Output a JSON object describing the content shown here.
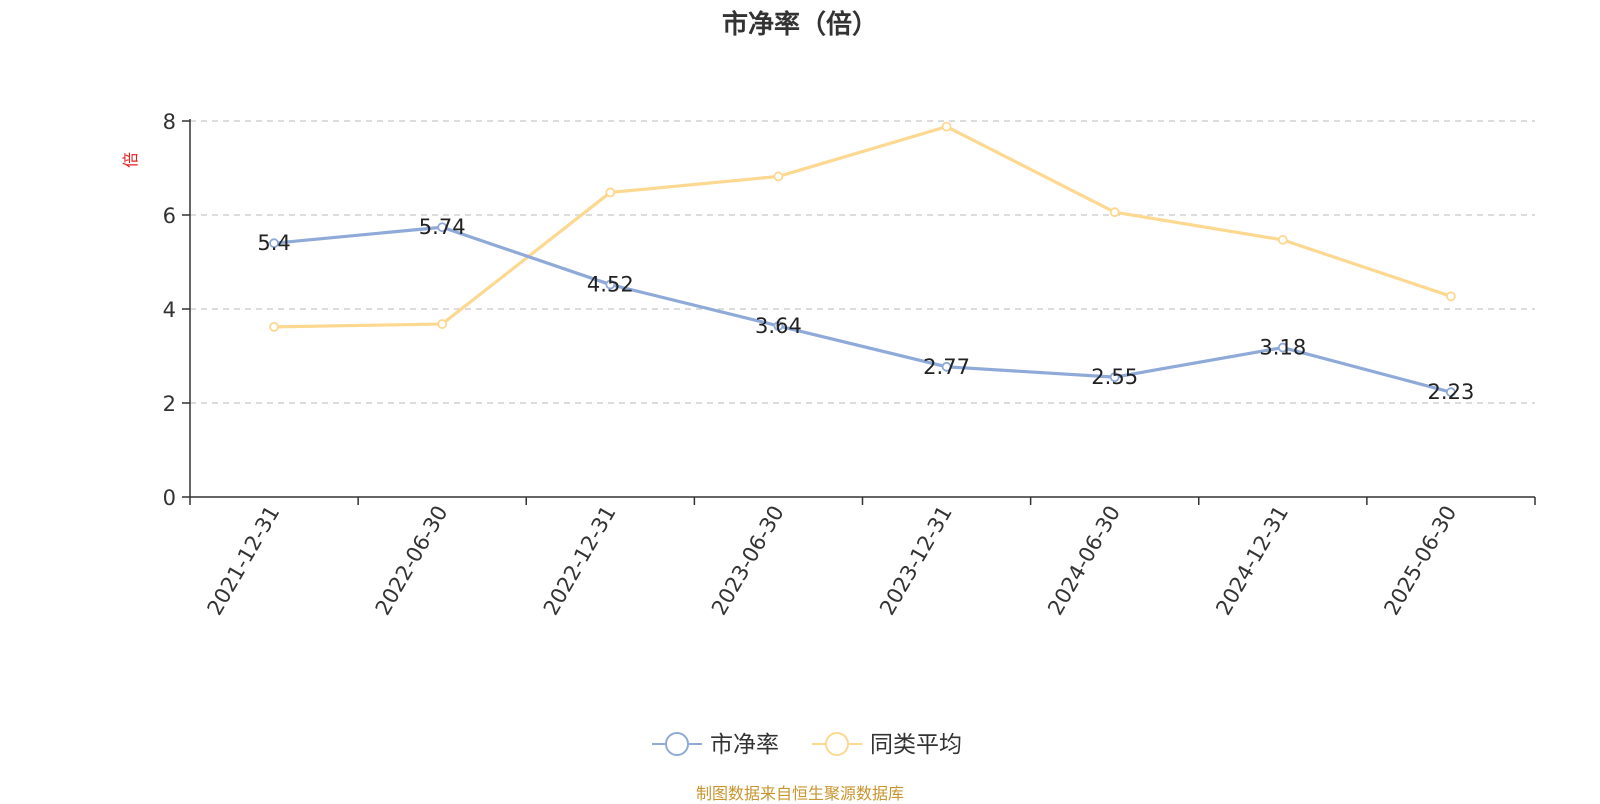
{
  "chart_data": {
    "type": "line",
    "title": "市净率（倍）",
    "ylabel": "倍",
    "xlabel": "",
    "ylim": [
      0,
      8
    ],
    "yticks": [
      0,
      2,
      4,
      6,
      8
    ],
    "categories": [
      "2021-12-31",
      "2022-06-30",
      "2022-12-31",
      "2023-06-30",
      "2023-12-31",
      "2024-06-30",
      "2024-12-31",
      "2025-06-30"
    ],
    "series": [
      {
        "name": "市净率",
        "color": "#8faad8",
        "values": [
          5.4,
          5.74,
          4.52,
          3.64,
          2.77,
          2.55,
          3.18,
          2.23
        ],
        "data_labels": [
          "5.4",
          "5.74",
          "4.52",
          "3.64",
          "2.77",
          "2.55",
          "3.18",
          "2.23"
        ]
      },
      {
        "name": "同类平均",
        "color": "#fcd890",
        "values": [
          3.62,
          3.68,
          6.48,
          6.82,
          7.88,
          6.06,
          5.47,
          4.27
        ]
      }
    ],
    "grid": true,
    "legend_position": "bottom-center"
  },
  "source_note": "制图数据来自恒生聚源数据库"
}
